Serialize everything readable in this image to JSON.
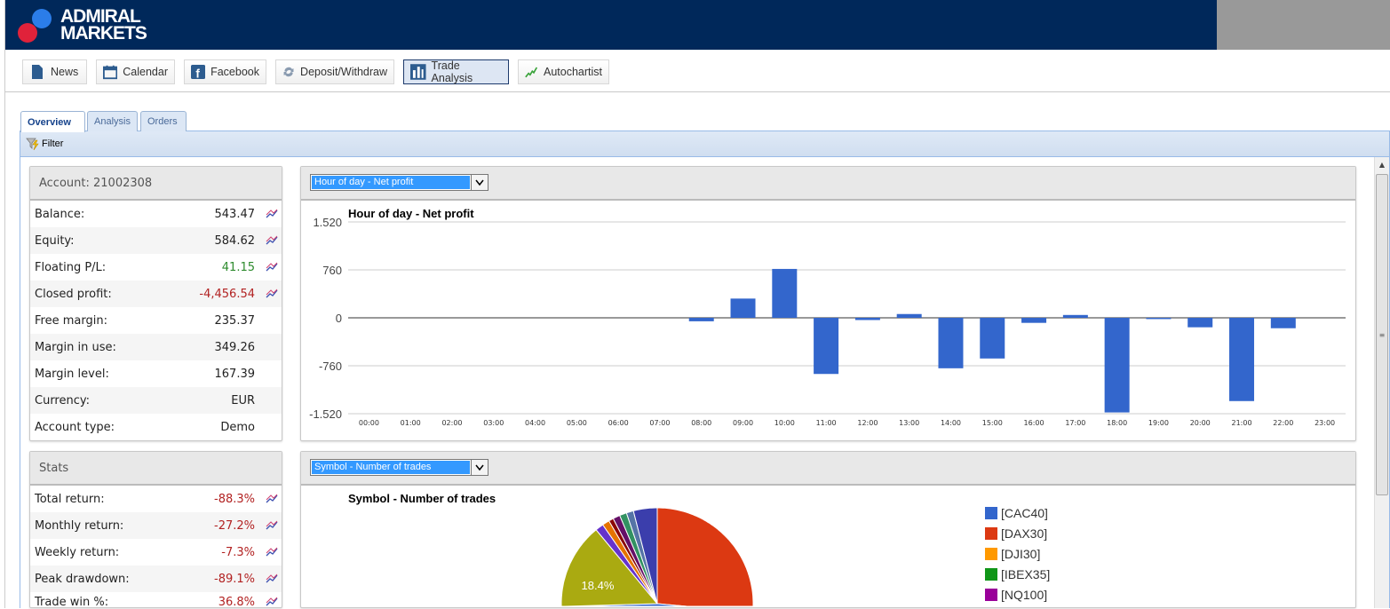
{
  "brand": {
    "line1": "ADMIRAL",
    "line2": "MARKETS",
    "colors": {
      "header": "#00285a",
      "dot_blue": "#2b7de9",
      "dot_red": "#e0223a"
    }
  },
  "toolbar": [
    {
      "label": "News",
      "icon": "document-icon"
    },
    {
      "label": "Calendar",
      "icon": "calendar-icon"
    },
    {
      "label": "Facebook",
      "icon": "facebook-icon"
    },
    {
      "label": "Deposit/Withdraw",
      "icon": "transfer-icon"
    },
    {
      "label": "Trade Analysis",
      "icon": "bar-chart-icon",
      "active": true
    },
    {
      "label": "Autochartist",
      "icon": "line-chart-icon"
    }
  ],
  "tabs": [
    {
      "label": "Overview",
      "active": true
    },
    {
      "label": "Analysis"
    },
    {
      "label": "Orders"
    }
  ],
  "filter": {
    "label": "Filter",
    "icon": "filter-icon"
  },
  "account": {
    "title": "Account: 21002308",
    "rows": [
      {
        "label": "Balance:",
        "value": "543.47",
        "chart": true
      },
      {
        "label": "Equity:",
        "value": "584.62",
        "chart": true
      },
      {
        "label": "Floating P/L:",
        "value": "41.15",
        "tone": "pos",
        "chart": true
      },
      {
        "label": "Closed profit:",
        "value": "-4,456.54",
        "tone": "neg",
        "chart": true
      },
      {
        "label": "Free margin:",
        "value": "235.37"
      },
      {
        "label": "Margin in use:",
        "value": "349.26"
      },
      {
        "label": "Margin level:",
        "value": "167.39"
      },
      {
        "label": "Currency:",
        "value": "EUR"
      },
      {
        "label": "Account type:",
        "value": "Demo"
      }
    ]
  },
  "stats": {
    "title": "Stats",
    "rows": [
      {
        "label": "Total return:",
        "value": "-88.3%",
        "tone": "neg",
        "chart": true
      },
      {
        "label": "Monthly return:",
        "value": "-27.2%",
        "tone": "neg",
        "chart": true
      },
      {
        "label": "Weekly return:",
        "value": "-7.3%",
        "tone": "neg",
        "chart": true
      },
      {
        "label": "Peak drawdown:",
        "value": "-89.1%",
        "tone": "neg",
        "chart": true
      },
      {
        "label": "Trade win %:",
        "value": "36.8%",
        "tone": "neg",
        "chart": true
      }
    ]
  },
  "chart1_select": "Hour of day - Net profit",
  "chart2_select": "Symbol - Number of trades",
  "chart_data": [
    {
      "type": "bar",
      "title": "Hour of day - Net profit",
      "categories": [
        "00:00",
        "01:00",
        "02:00",
        "03:00",
        "04:00",
        "05:00",
        "06:00",
        "07:00",
        "08:00",
        "09:00",
        "10:00",
        "11:00",
        "12:00",
        "13:00",
        "14:00",
        "15:00",
        "16:00",
        "17:00",
        "18:00",
        "19:00",
        "20:00",
        "21:00",
        "22:00",
        "23:00"
      ],
      "values": [
        0,
        0,
        0,
        0,
        0,
        0,
        0,
        0,
        -55,
        305,
        775,
        -890,
        -35,
        60,
        -800,
        -645,
        -80,
        45,
        -1500,
        -20,
        -150,
        -1320,
        -165,
        0
      ],
      "yticks": [
        "1.520",
        "760",
        "0",
        "-760",
        "-1.520"
      ],
      "ylim": [
        -1520,
        1520
      ],
      "color": "#3366cc",
      "grid": true
    },
    {
      "type": "pie",
      "title": "Symbol - Number of trades",
      "legend_position": "right",
      "legend": [
        {
          "name": "[CAC40]",
          "color": "#3366cc"
        },
        {
          "name": "[DAX30]",
          "color": "#dc3912"
        },
        {
          "name": "[DJI30]",
          "color": "#ff9900"
        },
        {
          "name": "[IBEX35]",
          "color": "#109618"
        },
        {
          "name": "[NQ100]",
          "color": "#990099"
        }
      ],
      "slices": [
        {
          "color": "#dc3912",
          "value": 45
        },
        {
          "color": "#3366cc",
          "value": 25.6
        },
        {
          "color": "#aaaa11",
          "value": 18.4,
          "label": "18.4%"
        },
        {
          "color": "#6633cc",
          "value": 1.4
        },
        {
          "color": "#e67300",
          "value": 1.2
        },
        {
          "color": "#8b0707",
          "value": 0.8
        },
        {
          "color": "#651067",
          "value": 1.2
        },
        {
          "color": "#329262",
          "value": 1.2
        },
        {
          "color": "#5574a6",
          "value": 1.2
        },
        {
          "color": "#3b3eac",
          "value": 4.0
        }
      ]
    }
  ]
}
